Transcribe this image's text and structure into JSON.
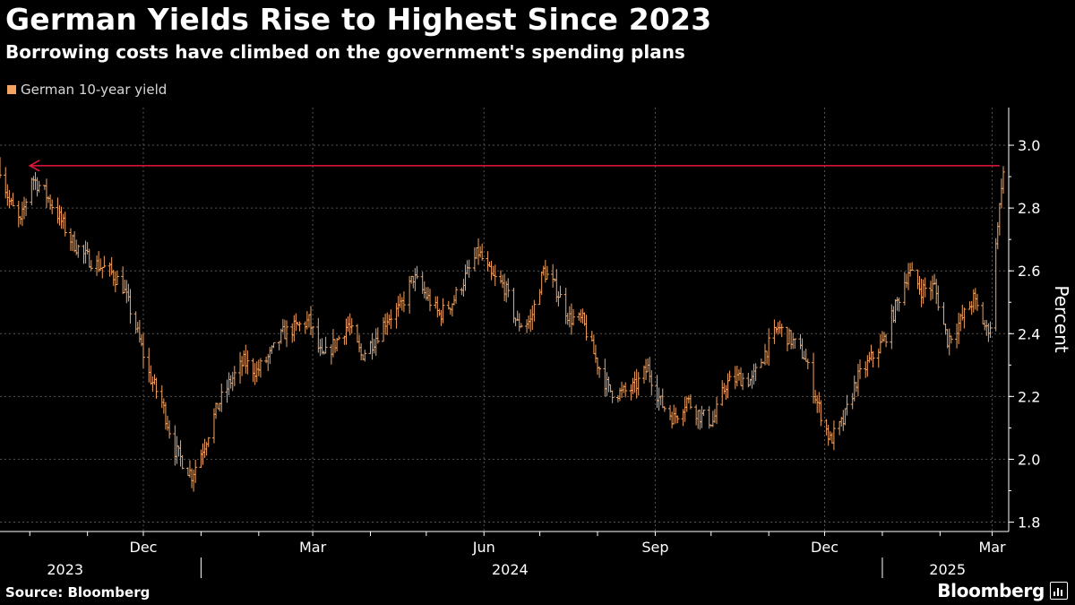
{
  "title": "German Yields Rise to Highest Since 2023",
  "subtitle": "Borrowing costs have climbed on the government's spending plans",
  "source": "Source: Bloomberg",
  "brand": "Bloomberg",
  "colors": {
    "series": "#f4a460",
    "arrow": "#e8173f",
    "grid": "#555555",
    "background": "#000000"
  },
  "chart_data": {
    "type": "ohlc",
    "series": [
      {
        "name": "German 10-year yield"
      }
    ],
    "ylabel": "Percent",
    "ylim": [
      1.77,
      3.12
    ],
    "yticks": [
      1.8,
      2.0,
      2.2,
      2.4,
      2.6,
      2.8,
      3.0
    ],
    "xlim": [
      "2023-09-15",
      "2025-03-07"
    ],
    "month_ticks": [
      {
        "date": "2023-10-01",
        "label": ""
      },
      {
        "date": "2023-11-01",
        "label": ""
      },
      {
        "date": "2023-12-01",
        "label": "Dec"
      },
      {
        "date": "2024-01-01",
        "label": ""
      },
      {
        "date": "2024-02-01",
        "label": ""
      },
      {
        "date": "2024-03-01",
        "label": "Mar"
      },
      {
        "date": "2024-04-01",
        "label": ""
      },
      {
        "date": "2024-05-01",
        "label": ""
      },
      {
        "date": "2024-06-01",
        "label": "Jun"
      },
      {
        "date": "2024-07-01",
        "label": ""
      },
      {
        "date": "2024-08-01",
        "label": ""
      },
      {
        "date": "2024-09-01",
        "label": "Sep"
      },
      {
        "date": "2024-10-01",
        "label": ""
      },
      {
        "date": "2024-11-01",
        "label": ""
      },
      {
        "date": "2024-12-01",
        "label": "Dec"
      },
      {
        "date": "2025-01-01",
        "label": ""
      },
      {
        "date": "2025-02-01",
        "label": ""
      },
      {
        "date": "2025-03-01",
        "label": "Mar"
      }
    ],
    "year_labels": [
      {
        "label": "2023",
        "date": "2023-10-20"
      },
      {
        "label": "2024",
        "date": "2024-06-15"
      },
      {
        "label": "2025",
        "date": "2025-02-05"
      }
    ],
    "year_separators": [
      "2024-01-01",
      "2025-01-01"
    ],
    "annotation": {
      "type": "arrow",
      "y": 2.935,
      "from": "2025-03-05",
      "to": "2023-10-01"
    },
    "anchors": [
      [
        "2023-09-15",
        2.93
      ],
      [
        "2023-09-20",
        2.82
      ],
      [
        "2023-09-26",
        2.75
      ],
      [
        "2023-10-02",
        2.9
      ],
      [
        "2023-10-09",
        2.85
      ],
      [
        "2023-10-16",
        2.78
      ],
      [
        "2023-10-23",
        2.7
      ],
      [
        "2023-10-30",
        2.65
      ],
      [
        "2023-11-06",
        2.62
      ],
      [
        "2023-11-13",
        2.6
      ],
      [
        "2023-11-20",
        2.55
      ],
      [
        "2023-11-27",
        2.42
      ],
      [
        "2023-12-04",
        2.27
      ],
      [
        "2023-12-11",
        2.18
      ],
      [
        "2023-12-18",
        2.03
      ],
      [
        "2023-12-27",
        1.95
      ],
      [
        "2024-01-03",
        2.05
      ],
      [
        "2024-01-10",
        2.17
      ],
      [
        "2024-01-17",
        2.25
      ],
      [
        "2024-01-24",
        2.31
      ],
      [
        "2024-01-31",
        2.28
      ],
      [
        "2024-02-07",
        2.33
      ],
      [
        "2024-02-14",
        2.4
      ],
      [
        "2024-02-21",
        2.42
      ],
      [
        "2024-02-28",
        2.44
      ],
      [
        "2024-03-06",
        2.32
      ],
      [
        "2024-03-13",
        2.37
      ],
      [
        "2024-03-20",
        2.43
      ],
      [
        "2024-03-27",
        2.33
      ],
      [
        "2024-04-03",
        2.38
      ],
      [
        "2024-04-10",
        2.45
      ],
      [
        "2024-04-17",
        2.48
      ],
      [
        "2024-04-24",
        2.58
      ],
      [
        "2024-05-01",
        2.52
      ],
      [
        "2024-05-08",
        2.46
      ],
      [
        "2024-05-15",
        2.5
      ],
      [
        "2024-05-22",
        2.58
      ],
      [
        "2024-05-29",
        2.66
      ],
      [
        "2024-06-05",
        2.58
      ],
      [
        "2024-06-12",
        2.55
      ],
      [
        "2024-06-19",
        2.43
      ],
      [
        "2024-06-26",
        2.44
      ],
      [
        "2024-07-03",
        2.6
      ],
      [
        "2024-07-10",
        2.54
      ],
      [
        "2024-07-17",
        2.45
      ],
      [
        "2024-07-24",
        2.44
      ],
      [
        "2024-07-31",
        2.32
      ],
      [
        "2024-08-07",
        2.22
      ],
      [
        "2024-08-14",
        2.21
      ],
      [
        "2024-08-21",
        2.23
      ],
      [
        "2024-08-28",
        2.29
      ],
      [
        "2024-09-04",
        2.18
      ],
      [
        "2024-09-11",
        2.13
      ],
      [
        "2024-09-18",
        2.19
      ],
      [
        "2024-09-25",
        2.14
      ],
      [
        "2024-10-02",
        2.12
      ],
      [
        "2024-10-09",
        2.24
      ],
      [
        "2024-10-16",
        2.26
      ],
      [
        "2024-10-23",
        2.25
      ],
      [
        "2024-10-30",
        2.34
      ],
      [
        "2024-11-06",
        2.42
      ],
      [
        "2024-11-13",
        2.38
      ],
      [
        "2024-11-20",
        2.33
      ],
      [
        "2024-11-27",
        2.18
      ],
      [
        "2024-12-04",
        2.06
      ],
      [
        "2024-12-11",
        2.12
      ],
      [
        "2024-12-18",
        2.25
      ],
      [
        "2024-12-26",
        2.32
      ],
      [
        "2025-01-02",
        2.38
      ],
      [
        "2025-01-09",
        2.5
      ],
      [
        "2025-01-15",
        2.6
      ],
      [
        "2025-01-22",
        2.54
      ],
      [
        "2025-01-29",
        2.55
      ],
      [
        "2025-02-05",
        2.38
      ],
      [
        "2025-02-12",
        2.44
      ],
      [
        "2025-02-19",
        2.51
      ],
      [
        "2025-02-26",
        2.41
      ],
      [
        "2025-02-28",
        2.43
      ],
      [
        "2025-03-04",
        2.76
      ],
      [
        "2025-03-05",
        2.8
      ],
      [
        "2025-03-06",
        2.88
      ],
      [
        "2025-03-07",
        2.91
      ]
    ]
  }
}
